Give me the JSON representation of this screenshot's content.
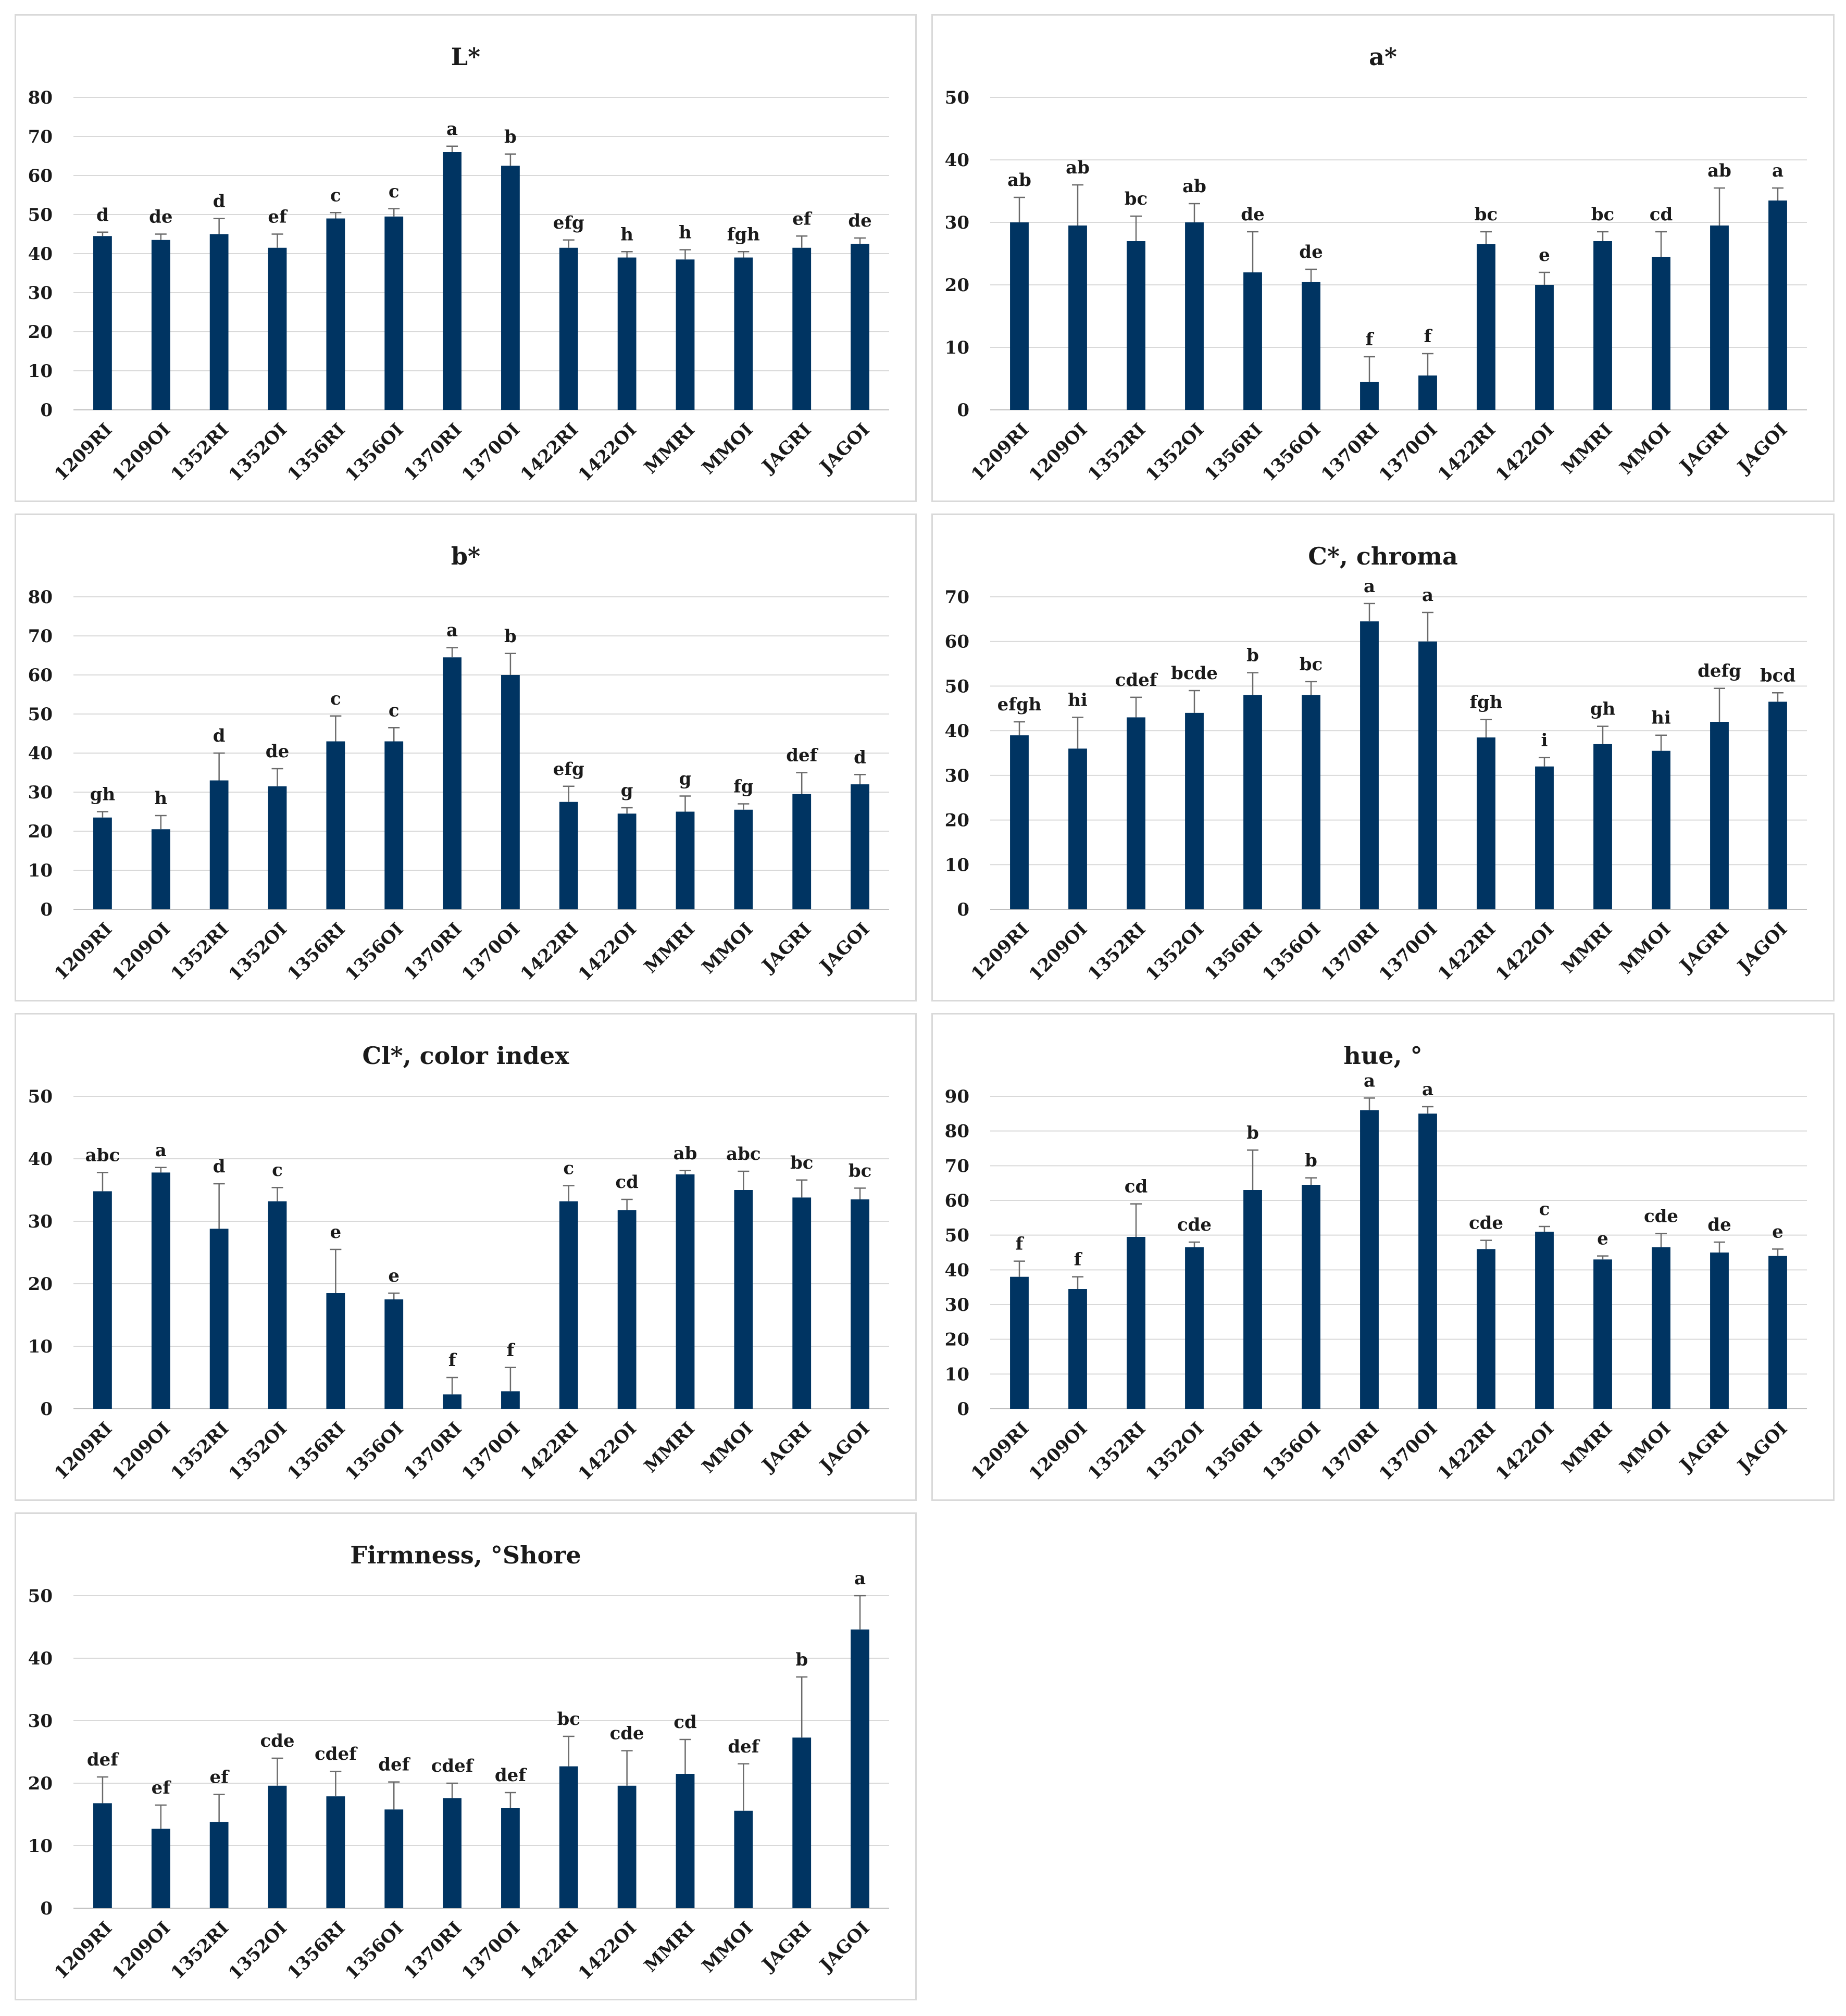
{
  "colors": {
    "bar": "#003462"
  },
  "categories": [
    "1209RI",
    "1209OI",
    "1352RI",
    "1352OI",
    "1356RI",
    "1356OI",
    "1370RI",
    "1370OI",
    "1422RI",
    "1422OI",
    "MMRI",
    "MMOI",
    "JAGRI",
    "JAGOI"
  ],
  "chart_data": [
    {
      "type": "bar",
      "title": "L*",
      "ylim": [
        0,
        80
      ],
      "ystep": 10,
      "values": [
        44.5,
        43.5,
        45,
        41.5,
        49,
        49.5,
        66,
        62.5,
        41.5,
        39,
        38.5,
        39,
        41.5,
        42.5
      ],
      "errors": [
        1,
        1.5,
        4,
        3.5,
        1.5,
        2,
        1.5,
        3,
        2,
        1.5,
        2.5,
        1.5,
        3,
        1.5
      ],
      "letters": [
        "d",
        "de",
        "d",
        "ef",
        "c",
        "c",
        "a",
        "b",
        "efg",
        "h",
        "h",
        "fgh",
        "ef",
        "de"
      ]
    },
    {
      "type": "bar",
      "title": "a*",
      "ylim": [
        0,
        50
      ],
      "ystep": 10,
      "values": [
        30,
        29.5,
        27,
        30,
        22,
        20.5,
        4.5,
        5.5,
        26.5,
        20,
        27,
        24.5,
        29.5,
        33.5
      ],
      "errors": [
        4,
        6.5,
        4,
        3,
        6.5,
        2,
        4,
        3.5,
        2,
        2,
        1.5,
        4,
        6,
        2
      ],
      "letters": [
        "ab",
        "ab",
        "bc",
        "ab",
        "de",
        "de",
        "f",
        "f",
        "bc",
        "e",
        "bc",
        "cd",
        "ab",
        "a"
      ]
    },
    {
      "type": "bar",
      "title": "b*",
      "ylim": [
        0,
        80
      ],
      "ystep": 10,
      "values": [
        23.5,
        20.5,
        33,
        31.5,
        43,
        43,
        64.5,
        60,
        27.5,
        24.5,
        25,
        25.5,
        29.5,
        32
      ],
      "errors": [
        1.5,
        3.5,
        7,
        4.5,
        6.5,
        3.5,
        2.5,
        5.5,
        4,
        1.5,
        4,
        1.5,
        5.5,
        2.5
      ],
      "letters": [
        "gh",
        "h",
        "d",
        "de",
        "c",
        "c",
        "a",
        "b",
        "efg",
        "g",
        "g",
        "fg",
        "def",
        "d"
      ]
    },
    {
      "type": "bar",
      "title": "C*, chroma",
      "ylim": [
        0,
        70
      ],
      "ystep": 10,
      "values": [
        39,
        36,
        43,
        44,
        48,
        48,
        64.5,
        60,
        38.5,
        32,
        37,
        35.5,
        42,
        46.5
      ],
      "errors": [
        3,
        7,
        4.5,
        5,
        5,
        3,
        4,
        6.5,
        4,
        2,
        4,
        3.5,
        7.5,
        2
      ],
      "letters": [
        "efgh",
        "hi",
        "cdef",
        "bcde",
        "b",
        "bc",
        "a",
        "a",
        "fgh",
        "i",
        "gh",
        "hi",
        "defg",
        "bcd"
      ]
    },
    {
      "type": "bar",
      "title": "Cl*, color index",
      "ylim": [
        0,
        50
      ],
      "ystep": 10,
      "values": [
        34.8,
        37.8,
        28.8,
        33.2,
        18.5,
        17.5,
        2.3,
        2.8,
        33.2,
        31.8,
        37.5,
        35,
        33.8,
        33.5
      ],
      "errors": [
        3,
        0.8,
        7.2,
        2.2,
        7,
        1,
        2.7,
        3.8,
        2.5,
        1.7,
        0.6,
        3,
        2.8,
        1.8
      ],
      "letters": [
        "abc",
        "a",
        "d",
        "c",
        "e",
        "e",
        "f",
        "f",
        "c",
        "cd",
        "ab",
        "abc",
        "bc",
        "bc"
      ]
    },
    {
      "type": "bar",
      "title": "hue, °",
      "ylim": [
        0,
        90
      ],
      "ystep": 10,
      "values": [
        38,
        34.5,
        49.5,
        46.5,
        63,
        64.5,
        86,
        85,
        46,
        51,
        43,
        46.5,
        45,
        44
      ],
      "errors": [
        4.5,
        3.5,
        9.5,
        1.5,
        11.5,
        2,
        3.5,
        2,
        2.5,
        1.5,
        1,
        4,
        3,
        2
      ],
      "letters": [
        "f",
        "f",
        "cd",
        "cde",
        "b",
        "b",
        "a",
        "a",
        "cde",
        "c",
        "e",
        "cde",
        "de",
        "e"
      ]
    },
    {
      "type": "bar",
      "title": "Firmness, °Shore",
      "ylim": [
        0,
        50
      ],
      "ystep": 10,
      "values": [
        16.8,
        12.7,
        13.8,
        19.6,
        17.9,
        15.8,
        17.6,
        16,
        22.7,
        19.6,
        21.5,
        15.6,
        27.3,
        44.6
      ],
      "errors": [
        4.2,
        3.8,
        4.4,
        4.4,
        4,
        4.4,
        2.4,
        2.5,
        4.8,
        5.6,
        5.5,
        7.5,
        9.7,
        5.6
      ],
      "letters": [
        "def",
        "ef",
        "ef",
        "cde",
        "cdef",
        "def",
        "cdef",
        "def",
        "bc",
        "cde",
        "cd",
        "def",
        "b",
        "a"
      ]
    }
  ]
}
